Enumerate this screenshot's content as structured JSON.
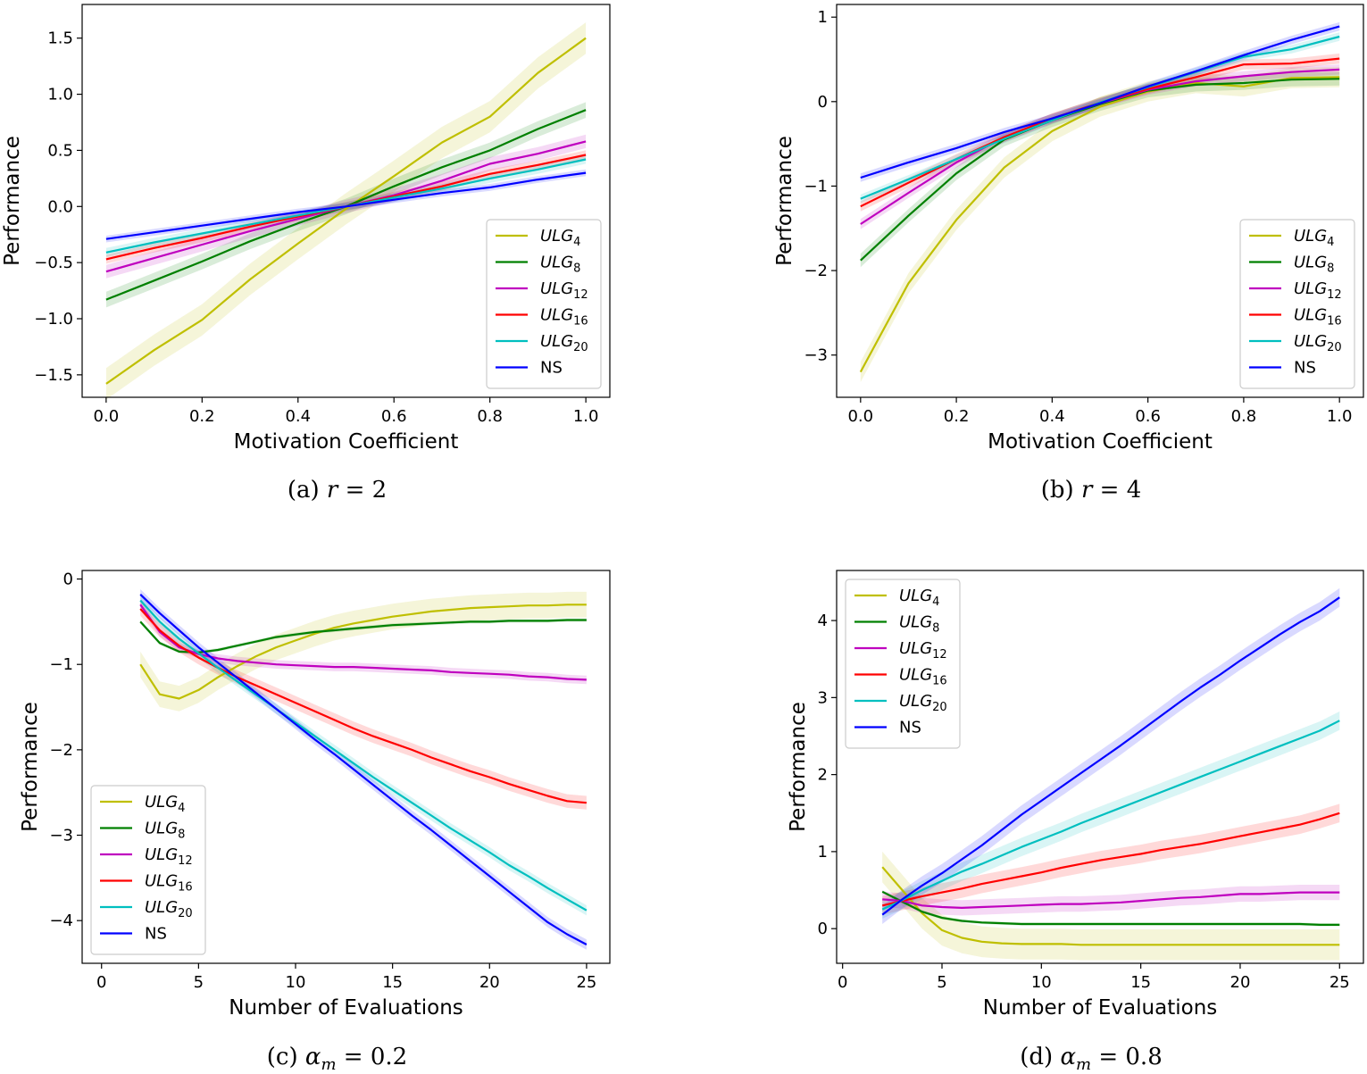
{
  "chart_data": [
    {
      "type": "line",
      "caption": "(a) r = 2",
      "caption_parts": {
        "prefix": "(a) ",
        "var": "r",
        "sub": "",
        "rest": " = 2"
      },
      "xlabel": "Motivation Coefficient",
      "ylabel": "Performance",
      "xlim": [
        -0.05,
        1.05
      ],
      "ylim": [
        -1.7,
        1.8
      ],
      "xticks": [
        0.0,
        0.2,
        0.4,
        0.6,
        0.8,
        1.0
      ],
      "xtick_labels": [
        "0.0",
        "0.2",
        "0.4",
        "0.6",
        "0.8",
        "1.0"
      ],
      "yticks": [
        -1.5,
        -1.0,
        -0.5,
        0.0,
        0.5,
        1.0,
        1.5
      ],
      "ytick_labels": [
        "−1.5",
        "−1.0",
        "−0.5",
        "0.0",
        "0.5",
        "1.0",
        "1.5"
      ],
      "legend_position": "lower-right",
      "x": [
        0.0,
        0.1,
        0.2,
        0.3,
        0.4,
        0.5,
        0.6,
        0.7,
        0.8,
        0.9,
        1.0
      ],
      "series": [
        {
          "name": "ULG",
          "sub": "4",
          "color": "#bfbf00",
          "band": 0.14,
          "values": [
            -1.58,
            -1.28,
            -1.01,
            -0.65,
            -0.33,
            -0.02,
            0.27,
            0.57,
            0.8,
            1.19,
            1.5
          ]
        },
        {
          "name": "ULG",
          "sub": "8",
          "color": "#008000",
          "band": 0.07,
          "values": [
            -0.83,
            -0.66,
            -0.49,
            -0.31,
            -0.15,
            0.0,
            0.18,
            0.35,
            0.5,
            0.69,
            0.86
          ]
        },
        {
          "name": "ULG",
          "sub": "12",
          "color": "#bf00bf",
          "band": 0.06,
          "values": [
            -0.58,
            -0.46,
            -0.34,
            -0.22,
            -0.11,
            0.0,
            0.1,
            0.23,
            0.38,
            0.47,
            0.58
          ]
        },
        {
          "name": "ULG",
          "sub": "16",
          "color": "#ff0000",
          "band": 0.04,
          "values": [
            -0.47,
            -0.37,
            -0.28,
            -0.18,
            -0.09,
            0.0,
            0.09,
            0.18,
            0.29,
            0.37,
            0.46
          ]
        },
        {
          "name": "ULG",
          "sub": "20",
          "color": "#00bfbf",
          "band": 0.04,
          "values": [
            -0.41,
            -0.32,
            -0.24,
            -0.16,
            -0.08,
            0.0,
            0.08,
            0.16,
            0.25,
            0.33,
            0.42
          ]
        },
        {
          "name": "NS",
          "sub": "",
          "color": "#0000ff",
          "band": 0.03,
          "values": [
            -0.29,
            -0.23,
            -0.17,
            -0.11,
            -0.05,
            0.0,
            0.06,
            0.12,
            0.17,
            0.24,
            0.3
          ]
        }
      ]
    },
    {
      "type": "line",
      "caption": "(b) r = 4",
      "caption_parts": {
        "prefix": "(b) ",
        "var": "r",
        "sub": "",
        "rest": " = 4"
      },
      "xlabel": "Motivation Coefficient",
      "ylabel": "Performance",
      "xlim": [
        -0.05,
        1.05
      ],
      "ylim": [
        -3.5,
        1.15
      ],
      "xticks": [
        0.0,
        0.2,
        0.4,
        0.6,
        0.8,
        1.0
      ],
      "xtick_labels": [
        "0.0",
        "0.2",
        "0.4",
        "0.6",
        "0.8",
        "1.0"
      ],
      "yticks": [
        -3,
        -2,
        -1,
        0,
        1
      ],
      "ytick_labels": [
        "−3",
        "−2",
        "−1",
        "0",
        "1"
      ],
      "legend_position": "lower-right",
      "x": [
        0.0,
        0.1,
        0.2,
        0.3,
        0.4,
        0.5,
        0.6,
        0.7,
        0.8,
        0.9,
        1.0
      ],
      "series": [
        {
          "name": "ULG",
          "sub": "4",
          "color": "#bfbf00",
          "band": 0.12,
          "values": [
            -3.2,
            -2.15,
            -1.4,
            -0.78,
            -0.35,
            -0.06,
            0.12,
            0.22,
            0.18,
            0.28,
            0.29
          ]
        },
        {
          "name": "ULG",
          "sub": "8",
          "color": "#008000",
          "band": 0.08,
          "values": [
            -1.88,
            -1.35,
            -0.85,
            -0.45,
            -0.22,
            -0.03,
            0.13,
            0.2,
            0.22,
            0.26,
            0.27
          ]
        },
        {
          "name": "ULG",
          "sub": "12",
          "color": "#bf00bf",
          "band": 0.06,
          "values": [
            -1.45,
            -1.08,
            -0.72,
            -0.42,
            -0.2,
            -0.02,
            0.14,
            0.24,
            0.3,
            0.35,
            0.38
          ]
        },
        {
          "name": "ULG",
          "sub": "16",
          "color": "#ff0000",
          "band": 0.06,
          "values": [
            -1.24,
            -0.96,
            -0.68,
            -0.42,
            -0.2,
            -0.01,
            0.15,
            0.29,
            0.44,
            0.45,
            0.51
          ]
        },
        {
          "name": "ULG",
          "sub": "20",
          "color": "#00bfbf",
          "band": 0.05,
          "values": [
            -1.15,
            -0.92,
            -0.68,
            -0.44,
            -0.22,
            -0.01,
            0.17,
            0.35,
            0.53,
            0.62,
            0.77
          ]
        },
        {
          "name": "NS",
          "sub": "",
          "color": "#0000ff",
          "band": 0.05,
          "values": [
            -0.9,
            -0.72,
            -0.55,
            -0.36,
            -0.2,
            -0.02,
            0.18,
            0.36,
            0.55,
            0.73,
            0.89
          ]
        }
      ]
    },
    {
      "type": "line",
      "caption": "(c) αm = 0.2",
      "caption_parts": {
        "prefix": "(c) ",
        "var": "α",
        "sub": "m",
        "rest": " = 0.2"
      },
      "xlabel": "Number of Evaluations",
      "ylabel": "Performance",
      "xlim": [
        -1,
        26.2
      ],
      "ylim": [
        -4.5,
        0.1
      ],
      "xticks": [
        0,
        5,
        10,
        15,
        20,
        25
      ],
      "xtick_labels": [
        "0",
        "5",
        "10",
        "15",
        "20",
        "25"
      ],
      "yticks": [
        -4,
        -3,
        -2,
        -1,
        0
      ],
      "ytick_labels": [
        "−4",
        "−3",
        "−2",
        "−1",
        "0"
      ],
      "legend_position": "lower-left",
      "x": [
        2,
        3,
        4,
        5,
        6,
        7,
        8,
        9,
        10,
        11,
        12,
        13,
        14,
        15,
        16,
        17,
        18,
        19,
        20,
        21,
        22,
        23,
        24,
        25
      ],
      "series": [
        {
          "name": "ULG",
          "sub": "4",
          "color": "#bfbf00",
          "band": 0.15,
          "values": [
            -1.0,
            -1.35,
            -1.4,
            -1.3,
            -1.15,
            -1.02,
            -0.9,
            -0.8,
            -0.72,
            -0.64,
            -0.57,
            -0.52,
            -0.48,
            -0.44,
            -0.41,
            -0.38,
            -0.36,
            -0.34,
            -0.33,
            -0.32,
            -0.31,
            -0.31,
            -0.3,
            -0.3
          ]
        },
        {
          "name": "ULG",
          "sub": "8",
          "color": "#008000",
          "band": 0.02,
          "values": [
            -0.5,
            -0.75,
            -0.85,
            -0.86,
            -0.83,
            -0.78,
            -0.73,
            -0.68,
            -0.65,
            -0.62,
            -0.6,
            -0.58,
            -0.56,
            -0.54,
            -0.53,
            -0.52,
            -0.51,
            -0.5,
            -0.5,
            -0.49,
            -0.49,
            -0.49,
            -0.48,
            -0.48
          ]
        },
        {
          "name": "ULG",
          "sub": "12",
          "color": "#bf00bf",
          "band": 0.05,
          "values": [
            -0.3,
            -0.62,
            -0.8,
            -0.88,
            -0.93,
            -0.96,
            -0.98,
            -1.0,
            -1.01,
            -1.02,
            -1.03,
            -1.03,
            -1.04,
            -1.05,
            -1.06,
            -1.07,
            -1.09,
            -1.1,
            -1.11,
            -1.12,
            -1.14,
            -1.15,
            -1.17,
            -1.18
          ]
        },
        {
          "name": "ULG",
          "sub": "16",
          "color": "#ff0000",
          "band": 0.08,
          "values": [
            -0.35,
            -0.6,
            -0.78,
            -0.92,
            -1.04,
            -1.15,
            -1.25,
            -1.35,
            -1.45,
            -1.55,
            -1.65,
            -1.75,
            -1.84,
            -1.92,
            -2.0,
            -2.09,
            -2.17,
            -2.25,
            -2.32,
            -2.4,
            -2.47,
            -2.54,
            -2.6,
            -2.62
          ]
        },
        {
          "name": "ULG",
          "sub": "20",
          "color": "#00bfbf",
          "band": 0.06,
          "values": [
            -0.25,
            -0.5,
            -0.7,
            -0.87,
            -1.04,
            -1.2,
            -1.36,
            -1.52,
            -1.68,
            -1.84,
            -2.0,
            -2.16,
            -2.32,
            -2.47,
            -2.62,
            -2.77,
            -2.92,
            -3.06,
            -3.2,
            -3.35,
            -3.48,
            -3.62,
            -3.75,
            -3.88
          ]
        },
        {
          "name": "NS",
          "sub": "",
          "color": "#0000ff",
          "band": 0.06,
          "values": [
            -0.18,
            -0.4,
            -0.6,
            -0.8,
            -0.98,
            -1.16,
            -1.34,
            -1.52,
            -1.7,
            -1.88,
            -2.05,
            -2.23,
            -2.41,
            -2.59,
            -2.77,
            -2.94,
            -3.12,
            -3.3,
            -3.48,
            -3.66,
            -3.84,
            -4.02,
            -4.16,
            -4.28
          ]
        }
      ]
    },
    {
      "type": "line",
      "caption": "(d) αm = 0.8",
      "caption_parts": {
        "prefix": "(d) ",
        "var": "α",
        "sub": "m",
        "rest": " = 0.8"
      },
      "xlabel": "Number of Evaluations",
      "ylabel": "Performance",
      "xlim": [
        -0.3,
        26.2
      ],
      "ylim": [
        -0.45,
        4.65
      ],
      "xticks": [
        0,
        5,
        10,
        15,
        20,
        25
      ],
      "xtick_labels": [
        "0",
        "5",
        "10",
        "15",
        "20",
        "25"
      ],
      "yticks": [
        0,
        1,
        2,
        3,
        4
      ],
      "ytick_labels": [
        "0",
        "1",
        "2",
        "3",
        "4"
      ],
      "legend_position": "upper-left",
      "x": [
        2,
        3,
        4,
        5,
        6,
        7,
        8,
        9,
        10,
        11,
        12,
        13,
        14,
        15,
        16,
        17,
        18,
        19,
        20,
        21,
        22,
        23,
        24,
        25
      ],
      "series": [
        {
          "name": "ULG",
          "sub": "4",
          "color": "#bfbf00",
          "band": 0.2,
          "values": [
            0.8,
            0.5,
            0.2,
            -0.02,
            -0.12,
            -0.17,
            -0.19,
            -0.2,
            -0.2,
            -0.2,
            -0.21,
            -0.21,
            -0.21,
            -0.21,
            -0.21,
            -0.21,
            -0.21,
            -0.21,
            -0.21,
            -0.21,
            -0.21,
            -0.21,
            -0.21,
            -0.21
          ]
        },
        {
          "name": "ULG",
          "sub": "8",
          "color": "#008000",
          "band": 0.02,
          "values": [
            0.48,
            0.35,
            0.22,
            0.14,
            0.1,
            0.08,
            0.07,
            0.06,
            0.06,
            0.06,
            0.06,
            0.06,
            0.06,
            0.06,
            0.06,
            0.06,
            0.06,
            0.06,
            0.06,
            0.06,
            0.06,
            0.06,
            0.05,
            0.05
          ]
        },
        {
          "name": "ULG",
          "sub": "12",
          "color": "#bf00bf",
          "band": 0.1,
          "values": [
            0.38,
            0.36,
            0.3,
            0.28,
            0.27,
            0.28,
            0.29,
            0.3,
            0.31,
            0.32,
            0.32,
            0.33,
            0.34,
            0.36,
            0.38,
            0.4,
            0.41,
            0.43,
            0.45,
            0.45,
            0.46,
            0.47,
            0.47,
            0.47
          ]
        },
        {
          "name": "ULG",
          "sub": "16",
          "color": "#ff0000",
          "band": 0.12,
          "values": [
            0.3,
            0.36,
            0.42,
            0.47,
            0.52,
            0.58,
            0.63,
            0.68,
            0.73,
            0.79,
            0.84,
            0.89,
            0.93,
            0.97,
            1.02,
            1.06,
            1.1,
            1.15,
            1.2,
            1.25,
            1.3,
            1.35,
            1.42,
            1.5
          ]
        },
        {
          "name": "ULG",
          "sub": "20",
          "color": "#00bfbf",
          "band": 0.12,
          "values": [
            0.25,
            0.37,
            0.5,
            0.62,
            0.74,
            0.84,
            0.95,
            1.06,
            1.16,
            1.26,
            1.37,
            1.47,
            1.57,
            1.67,
            1.77,
            1.87,
            1.97,
            2.07,
            2.17,
            2.27,
            2.37,
            2.47,
            2.57,
            2.7
          ]
        },
        {
          "name": "NS",
          "sub": "",
          "color": "#0000ff",
          "band": 0.12,
          "values": [
            0.18,
            0.38,
            0.56,
            0.72,
            0.9,
            1.08,
            1.28,
            1.48,
            1.66,
            1.84,
            2.02,
            2.2,
            2.38,
            2.57,
            2.76,
            2.95,
            3.13,
            3.3,
            3.48,
            3.65,
            3.82,
            3.98,
            4.12,
            4.3
          ]
        }
      ]
    }
  ]
}
